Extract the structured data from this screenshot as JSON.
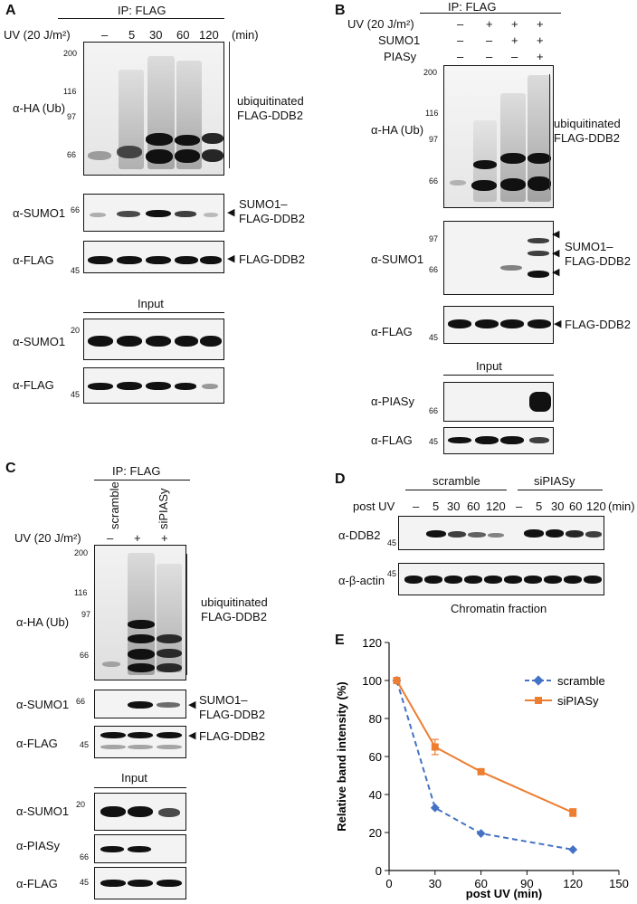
{
  "panel_letters": {
    "a": "A",
    "b": "B",
    "c": "C",
    "d": "D",
    "e": "E"
  },
  "common": {
    "ip_flag": "IP: FLAG",
    "input": "Input",
    "uv_dose": "UV (20 J/m²)",
    "min": "(min)",
    "ha_ub": "α-HA (Ub)",
    "sumo1": "α-SUMO1",
    "flag": "α-FLAG",
    "piasy": "α-PIASy",
    "ubiq_line1": "ubiquitinated",
    "ubiq_line2": "FLAG-DDB2",
    "sumo_ddb2_line1": "SUMO1–",
    "sumo_ddb2_line2": "FLAG-DDB2",
    "flag_ddb2": "FLAG-DDB2"
  },
  "panel_a": {
    "lanes": [
      "–",
      "5",
      "30",
      "60",
      "120"
    ],
    "markers": {
      "m200": "200",
      "m116": "116",
      "m97": "97",
      "m66": "66",
      "m66b": "66",
      "m45": "45",
      "m20": "20",
      "m45b": "45"
    }
  },
  "panel_b": {
    "row_sumo1": "SUMO1",
    "row_piasy": "PIASy",
    "uv": [
      "–",
      "+",
      "+",
      "+"
    ],
    "sumo": [
      "–",
      "–",
      "+",
      "+"
    ],
    "pias": [
      "–",
      "–",
      "–",
      "+"
    ],
    "markers": {
      "m200": "200",
      "m116": "116",
      "m97": "97",
      "m66": "66",
      "m97b": "97",
      "m66b": "66",
      "m45": "45",
      "m66c": "66",
      "m45b": "45"
    }
  },
  "panel_c": {
    "col_scramble": "scramble",
    "col_sipiasy": "siPIASy",
    "uv": [
      "–",
      "+",
      "+"
    ],
    "markers": {
      "m200": "200",
      "m116": "116",
      "m97": "97",
      "m66": "66",
      "m66b": "66",
      "m45": "45",
      "m20": "20",
      "m66c": "66",
      "m45b": "45"
    }
  },
  "panel_d": {
    "group1": "scramble",
    "group2": "siPIASy",
    "post_uv": "post UV",
    "lanes": [
      "–",
      "5",
      "30",
      "60",
      "120",
      "–",
      "5",
      "30",
      "60",
      "120"
    ],
    "ddb2": "α-DDB2",
    "actin": "α-β-actin",
    "m45a": "45",
    "m45b": "45",
    "caption": "Chromatin fraction"
  },
  "chart_data": {
    "type": "line",
    "xlabel": "post UV (min)",
    "ylabel": "Relative band intensity (%)",
    "xlim": [
      0,
      150
    ],
    "ylim": [
      0,
      120
    ],
    "xticks": [
      "0",
      "30",
      "60",
      "90",
      "120",
      "150"
    ],
    "yticks": [
      "0",
      "20",
      "40",
      "60",
      "80",
      "100",
      "120"
    ],
    "legend_position": "top-right",
    "series": [
      {
        "name": "scramble",
        "color": "#4472c4",
        "style": "dashed",
        "marker": "diamond",
        "x": [
          5,
          30,
          60,
          120
        ],
        "y": [
          100,
          33,
          19.5,
          11
        ]
      },
      {
        "name": "siPIASy",
        "color": "#ed7d31",
        "style": "solid",
        "marker": "square",
        "x": [
          5,
          30,
          60,
          120
        ],
        "y": [
          100,
          65,
          52,
          30.5
        ],
        "err": [
          0,
          4,
          0,
          2
        ]
      }
    ]
  }
}
